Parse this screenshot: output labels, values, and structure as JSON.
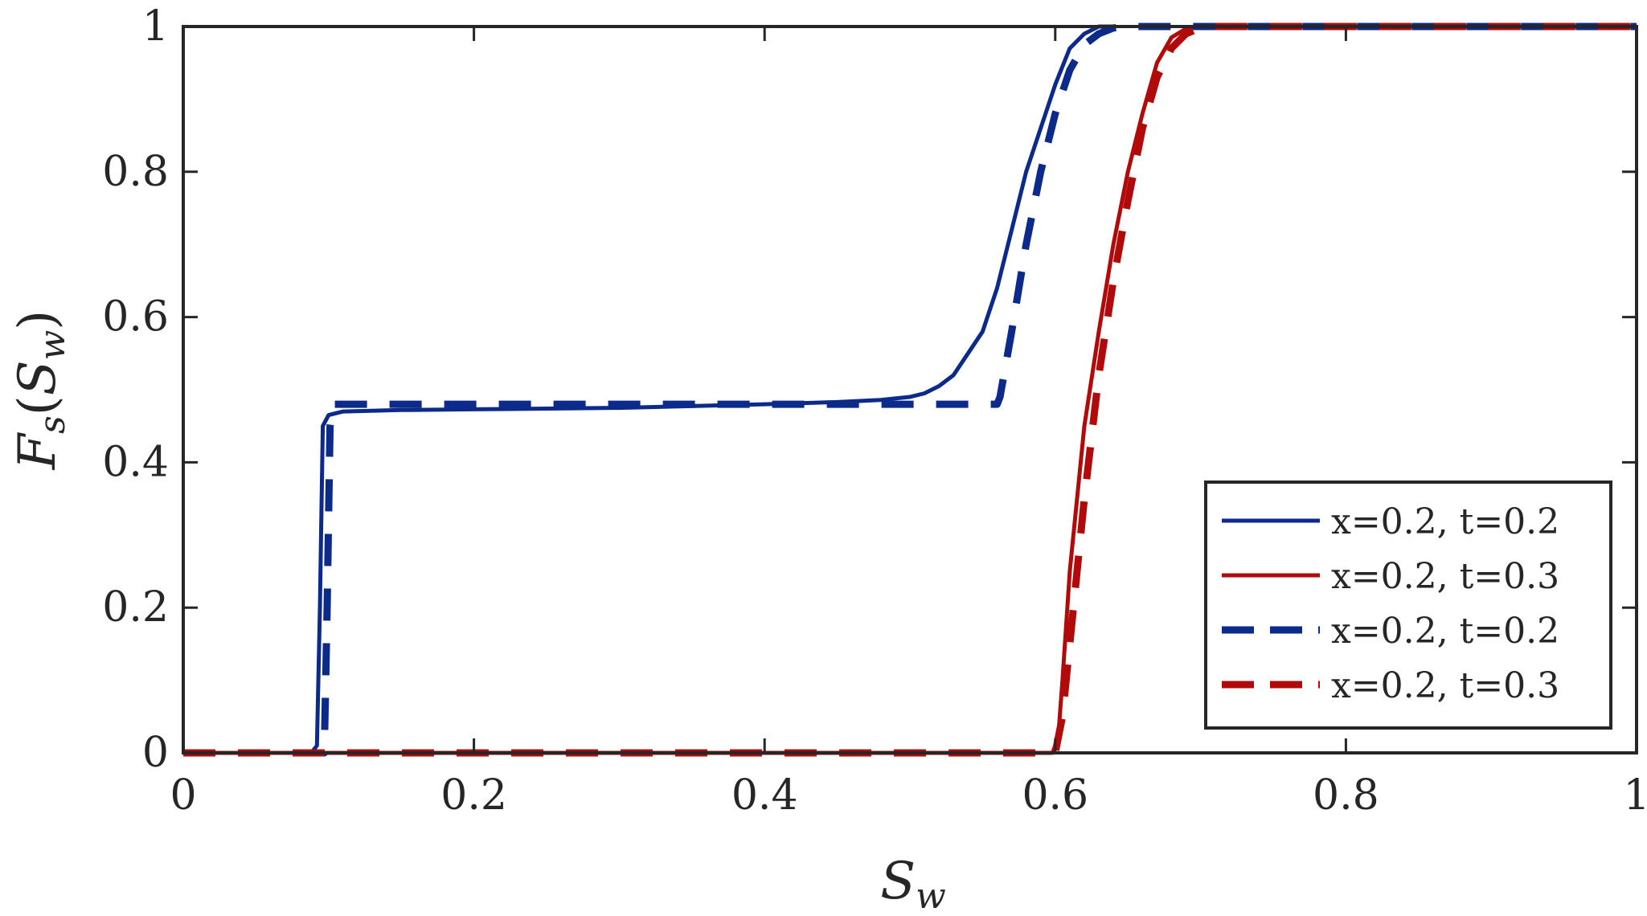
{
  "chart_data": {
    "type": "line",
    "title": "",
    "xlabel": {
      "main": "S",
      "sub": "w"
    },
    "ylabel": {
      "f": "F",
      "f_sub": "s",
      "open": "(",
      "s": "S",
      "s_sub": "w",
      "close": ")"
    },
    "xlim": [
      0,
      1
    ],
    "ylim": [
      0,
      1
    ],
    "xticks": [
      0,
      0.2,
      0.4,
      0.6,
      0.8,
      1
    ],
    "yticks": [
      0,
      0.2,
      0.4,
      0.6,
      0.8,
      1
    ],
    "xtick_labels": [
      "0",
      "0.2",
      "0.4",
      "0.6",
      "0.8",
      "1"
    ],
    "ytick_labels": [
      "0",
      "0.2",
      "0.4",
      "0.6",
      "0.8",
      "1"
    ],
    "grid": false,
    "legend_position": "bottom-right",
    "series": [
      {
        "name": "x=0.2, t=0.2",
        "color": "#0b2a8a",
        "style": "solid",
        "x": [
          0.0,
          0.07,
          0.088,
          0.092,
          0.094,
          0.096,
          0.1,
          0.11,
          0.15,
          0.2,
          0.3,
          0.4,
          0.45,
          0.48,
          0.5,
          0.51,
          0.52,
          0.53,
          0.54,
          0.55,
          0.56,
          0.57,
          0.58,
          0.59,
          0.6,
          0.61,
          0.62,
          0.63,
          0.64
        ],
        "y": [
          0.0,
          0.0,
          0.0,
          0.01,
          0.2,
          0.45,
          0.465,
          0.47,
          0.472,
          0.473,
          0.475,
          0.48,
          0.483,
          0.486,
          0.49,
          0.495,
          0.505,
          0.52,
          0.55,
          0.58,
          0.64,
          0.72,
          0.8,
          0.86,
          0.92,
          0.97,
          0.99,
          1.0,
          1.0
        ]
      },
      {
        "name": "x=0.2, t=0.3",
        "color": "#b00a0a",
        "style": "solid",
        "x": [
          0.0,
          0.598,
          0.602,
          0.605,
          0.61,
          0.62,
          0.63,
          0.64,
          0.65,
          0.66,
          0.67,
          0.68,
          0.69,
          0.7,
          1.0
        ],
        "y": [
          0.0,
          0.0,
          0.02,
          0.1,
          0.25,
          0.45,
          0.58,
          0.7,
          0.8,
          0.88,
          0.95,
          0.985,
          0.997,
          1.0,
          1.0
        ]
      },
      {
        "name": "x=0.2, t=0.2",
        "color": "#0b2a8a",
        "style": "dashed",
        "x": [
          0.0,
          0.097,
          0.099,
          0.101,
          0.103,
          0.56,
          0.562,
          0.57,
          0.58,
          0.59,
          0.6,
          0.61,
          0.62,
          0.63,
          0.64,
          0.65,
          1.0
        ],
        "y": [
          0.0,
          0.0,
          0.2,
          0.45,
          0.48,
          0.48,
          0.49,
          0.58,
          0.7,
          0.8,
          0.88,
          0.94,
          0.975,
          0.99,
          0.998,
          1.0,
          1.0
        ]
      },
      {
        "name": "x=0.2, t=0.3",
        "color": "#b00a0a",
        "style": "dashed",
        "x": [
          0.0,
          0.6,
          0.605,
          0.61,
          0.62,
          0.63,
          0.64,
          0.65,
          0.66,
          0.67,
          0.68,
          0.69,
          0.7,
          0.71,
          1.0
        ],
        "y": [
          0.0,
          0.0,
          0.05,
          0.15,
          0.35,
          0.52,
          0.65,
          0.76,
          0.86,
          0.93,
          0.97,
          0.99,
          0.998,
          1.0,
          1.0
        ]
      }
    ]
  }
}
